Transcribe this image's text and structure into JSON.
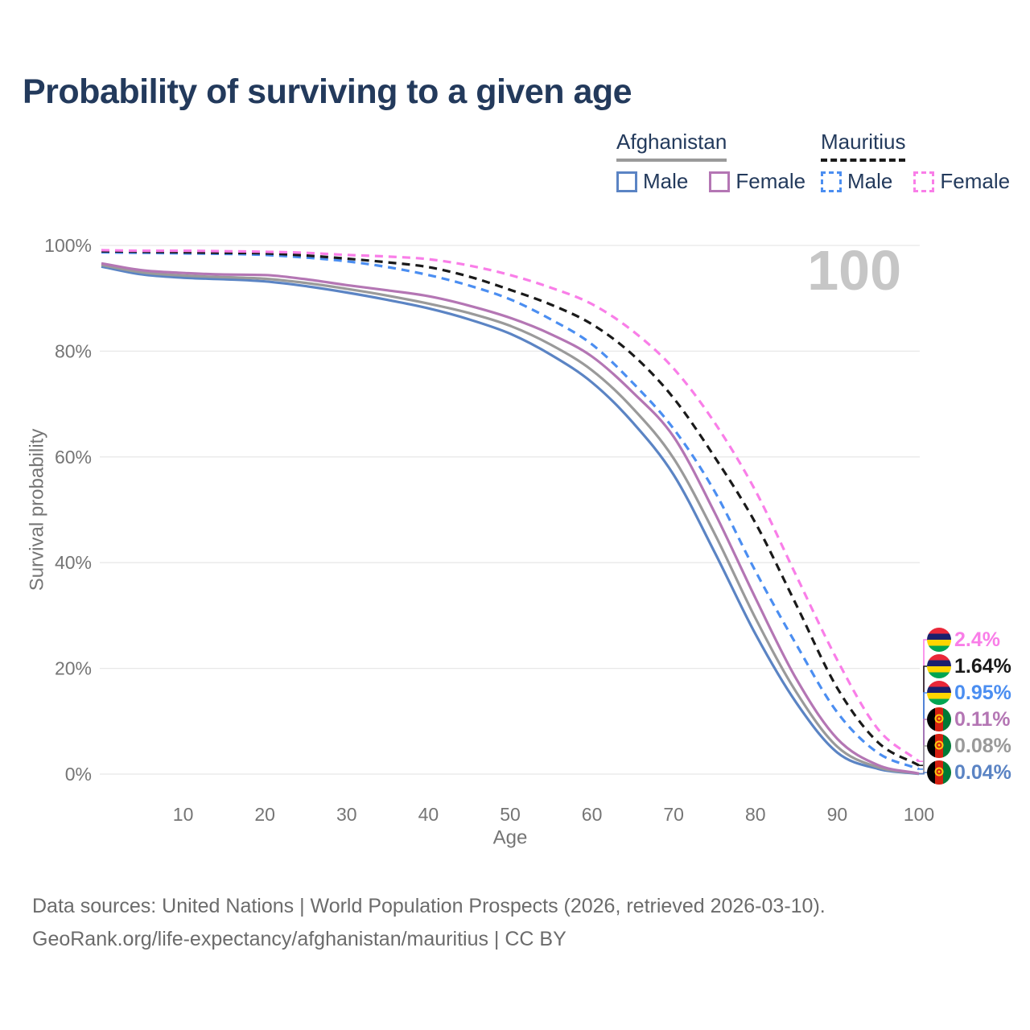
{
  "title": "Probability of surviving to a given age",
  "watermark": "100",
  "legend": {
    "afghanistan": {
      "label": "Afghanistan",
      "male": "Male",
      "female": "Female"
    },
    "mauritius": {
      "label": "Mauritius",
      "male": "Male",
      "female": "Female"
    }
  },
  "footer": {
    "line1": "Data sources: United Nations | World Population Prospects (2026, retrieved 2026-03-10).",
    "line2": "GeoRank.org/life-expectancy/afghanistan/mauritius | CC BY"
  },
  "colors": {
    "title": "#233a5c",
    "axis_text": "#757575",
    "grid": "#e8e8e8",
    "watermark": "#c6c6c6",
    "footer_text": "#6b6b6b",
    "afghanistan_underline": "#9a9a9a",
    "mauritius_underline": "#1a1a1a",
    "af_male": "#5b84c4",
    "af_female": "#b476b4",
    "af_both": "#9a9a9a",
    "mu_male": "#4b8ef1",
    "mu_female": "#f97ee8",
    "mu_both": "#1a1a1a"
  },
  "chart_data": {
    "type": "line",
    "title": "Probability of surviving to a given age",
    "xlabel": "Age",
    "ylabel": "Survival probability",
    "xlim": [
      0,
      100
    ],
    "ylim": [
      0,
      100
    ],
    "grid": true,
    "legend_position": "top-right",
    "x_ticks": [
      10,
      20,
      30,
      40,
      50,
      60,
      70,
      80,
      90,
      100
    ],
    "y_ticks": [
      0,
      20,
      40,
      60,
      80,
      100
    ],
    "y_tick_suffix": "%",
    "x": [
      0,
      5,
      10,
      15,
      20,
      25,
      30,
      35,
      40,
      45,
      50,
      55,
      60,
      65,
      70,
      75,
      80,
      85,
      90,
      95,
      100
    ],
    "series": [
      {
        "name": "Mauritius Female",
        "country": "mauritius",
        "sex": "female",
        "style": "dashed",
        "color": "#f97ee8",
        "end_label": "2.4%",
        "values": [
          99.1,
          99.0,
          99.0,
          98.9,
          98.8,
          98.6,
          98.2,
          97.9,
          97.4,
          96.2,
          94.4,
          92.0,
          88.9,
          83.8,
          76.7,
          66.5,
          53.6,
          37.5,
          21.6,
          8.5,
          2.4
        ]
      },
      {
        "name": "Mauritius Both sexes",
        "country": "mauritius",
        "sex": "both",
        "style": "dashed",
        "color": "#1a1a1a",
        "end_label": "1.64%",
        "values": [
          98.9,
          98.8,
          98.7,
          98.6,
          98.5,
          98.1,
          97.5,
          96.8,
          95.9,
          94.1,
          91.6,
          88.8,
          85.1,
          79.3,
          71.1,
          60.0,
          47.5,
          32.0,
          16.3,
          6.0,
          1.64
        ]
      },
      {
        "name": "Mauritius Male",
        "country": "mauritius",
        "sex": "male",
        "style": "dashed",
        "color": "#4b8ef1",
        "end_label": "0.95%",
        "values": [
          98.7,
          98.6,
          98.5,
          98.4,
          98.2,
          97.7,
          97.0,
          95.9,
          94.4,
          92.4,
          89.8,
          86.0,
          81.3,
          74.0,
          65.3,
          53.5,
          38.4,
          24.5,
          11.7,
          4.0,
          0.95
        ]
      },
      {
        "name": "Afghanistan Female",
        "country": "afghanistan",
        "sex": "female",
        "style": "solid",
        "color": "#b476b4",
        "end_label": "0.11%",
        "values": [
          96.6,
          95.3,
          94.8,
          94.5,
          94.4,
          93.6,
          92.5,
          91.5,
          90.4,
          88.6,
          86.3,
          83.2,
          79.0,
          72.2,
          63.8,
          49.5,
          33.3,
          18.0,
          6.7,
          1.7,
          0.11
        ]
      },
      {
        "name": "Afghanistan Both sexes",
        "country": "afghanistan",
        "sex": "both",
        "style": "solid",
        "color": "#9a9a9a",
        "end_label": "0.08%",
        "values": [
          96.3,
          94.9,
          94.3,
          94.0,
          93.7,
          92.9,
          91.8,
          90.5,
          89.0,
          87.2,
          84.8,
          81.2,
          76.4,
          69.2,
          59.7,
          45.5,
          29.5,
          15.5,
          5.2,
          1.3,
          0.08
        ]
      },
      {
        "name": "Afghanistan Male",
        "country": "afghanistan",
        "sex": "male",
        "style": "solid",
        "color": "#5b84c4",
        "end_label": "0.04%",
        "values": [
          96.0,
          94.5,
          93.9,
          93.6,
          93.2,
          92.3,
          91.1,
          89.7,
          88.1,
          86.0,
          83.3,
          79.3,
          74.1,
          66.5,
          56.6,
          42.0,
          26.5,
          13.5,
          4.1,
          1.0,
          0.04
        ]
      }
    ],
    "flag_colors": {
      "mauritius": {
        "red": "#EA2839",
        "blue": "#1A206D",
        "yellow": "#FFD500",
        "green": "#00A551"
      },
      "afghanistan": {
        "black": "#000000",
        "red": "#D32011",
        "green": "#007A36",
        "emblem": "#FFC90E"
      }
    }
  }
}
